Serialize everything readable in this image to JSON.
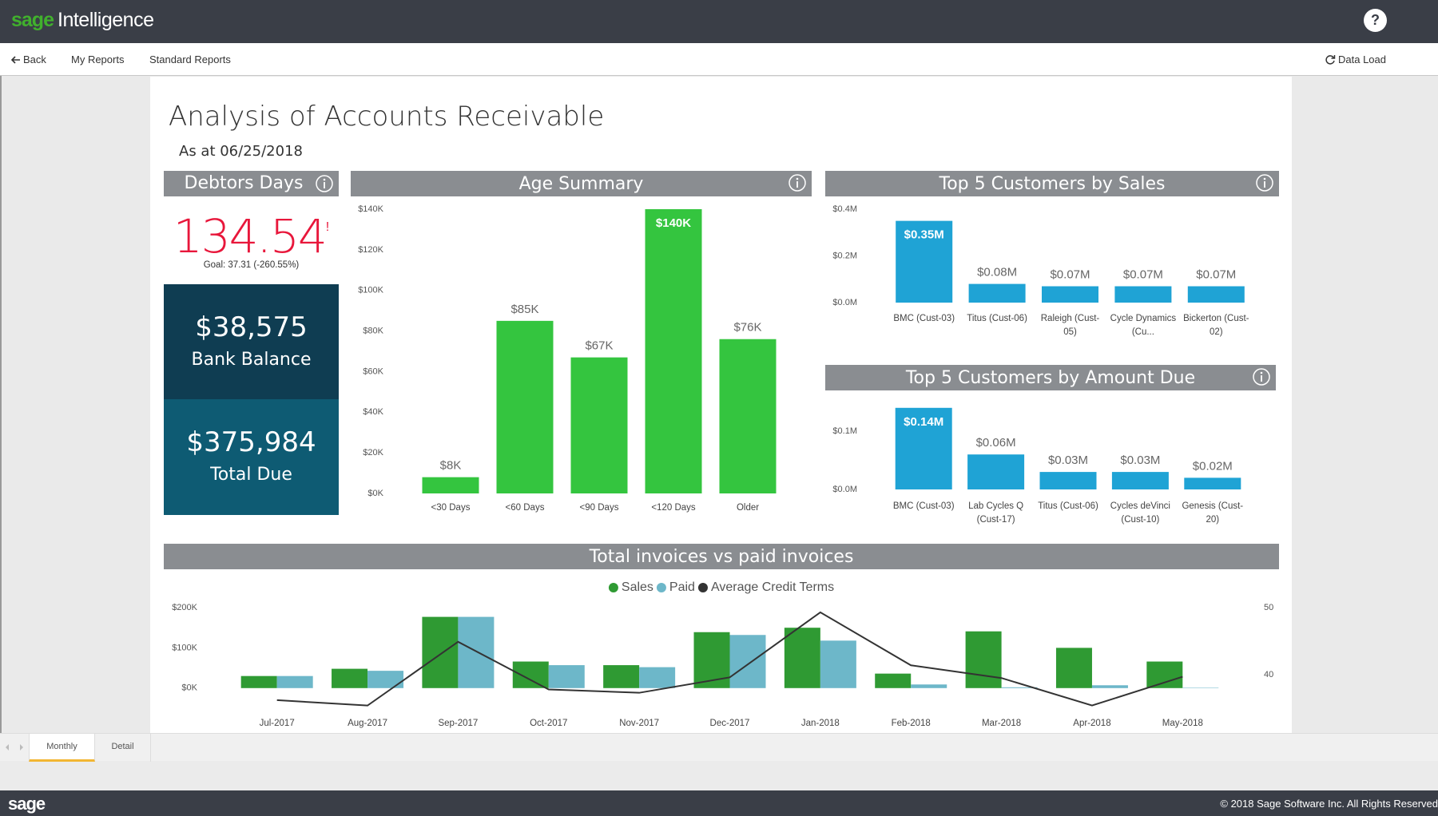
{
  "header": {
    "brand": "sage",
    "product": "Intelligence",
    "help": "?"
  },
  "nav": {
    "back": "Back",
    "my_reports": "My Reports",
    "standard_reports": "Standard Reports",
    "data_load": "Data Load"
  },
  "report": {
    "title": "Analysis of Accounts Receivable",
    "subtitle": "As at 06/25/2018",
    "debtors_days": {
      "title": "Debtors Days",
      "value": "134.54",
      "flag": "!",
      "goal": "Goal: 37.31 (-260.55%)"
    },
    "bank_balance": {
      "value": "$38,575",
      "label": "Bank Balance"
    },
    "total_due": {
      "value": "$375,984",
      "label": "Total Due"
    }
  },
  "chart_data": [
    {
      "type": "bar",
      "title": "Age Summary",
      "categories": [
        "<30 Days",
        "<60 Days",
        "<90 Days",
        "<120 Days",
        "Older"
      ],
      "values": [
        8000,
        85000,
        67000,
        140000,
        76000
      ],
      "value_labels": [
        "$8K",
        "$85K",
        "$67K",
        "$140K",
        "$76K"
      ],
      "color": "#34c53f",
      "ylim": [
        0,
        140000
      ],
      "yticks": [
        {
          "value": 0,
          "label": "$0K"
        },
        {
          "value": 20000,
          "label": "$20K"
        },
        {
          "value": 40000,
          "label": "$40K"
        },
        {
          "value": 60000,
          "label": "$60K"
        },
        {
          "value": 80000,
          "label": "$80K"
        },
        {
          "value": 100000,
          "label": "$100K"
        },
        {
          "value": 120000,
          "label": "$120K"
        },
        {
          "value": 140000,
          "label": "$140K"
        }
      ],
      "grid": false
    },
    {
      "type": "bar",
      "title": "Top 5 Customers by Sales",
      "categories": [
        "BMC (Cust-03)",
        "Titus (Cust-06)",
        "Raleigh (Cust-05)",
        "Cycle Dynamics (Cu...",
        "Bickerton (Cust-02)"
      ],
      "values": [
        0.35,
        0.08,
        0.07,
        0.07,
        0.07
      ],
      "value_labels": [
        "$0.35M",
        "$0.08M",
        "$0.07M",
        "$0.07M",
        "$0.07M"
      ],
      "color": "#1fa3d5",
      "ylim": [
        0,
        0.4
      ],
      "yticks": [
        {
          "value": 0,
          "label": "$0.0M"
        },
        {
          "value": 0.2,
          "label": "$0.2M"
        },
        {
          "value": 0.4,
          "label": "$0.4M"
        }
      ],
      "grid": false
    },
    {
      "type": "bar",
      "title": "Top 5 Customers by Amount Due",
      "categories": [
        "BMC (Cust-03)",
        "Lab Cycles Q (Cust-17)",
        "Titus (Cust-06)",
        "Cycles deVinci (Cust-10)",
        "Genesis (Cust-20)"
      ],
      "values": [
        0.14,
        0.06,
        0.03,
        0.03,
        0.02
      ],
      "value_labels": [
        "$0.14M",
        "$0.06M",
        "$0.03M",
        "$0.03M",
        "$0.02M"
      ],
      "color": "#1fa3d5",
      "ylim": [
        0,
        0.15
      ],
      "yticks": [
        {
          "value": 0,
          "label": "$0.0M"
        },
        {
          "value": 0.1,
          "label": "$0.1M"
        }
      ],
      "grid": false
    },
    {
      "type": "combo",
      "title": "Total invoices vs paid invoices",
      "categories": [
        "Jul-2017",
        "Aug-2017",
        "Sep-2017",
        "Oct-2017",
        "Nov-2017",
        "Dec-2017",
        "Jan-2018",
        "Feb-2018",
        "Mar-2018",
        "Apr-2018",
        "May-2018"
      ],
      "series": [
        {
          "name": "Sales",
          "type": "bar",
          "color": "#2f9a33",
          "values": [
            30000,
            48000,
            177000,
            66000,
            57000,
            139000,
            150000,
            36000,
            141000,
            100000,
            66000
          ]
        },
        {
          "name": "Paid",
          "type": "bar",
          "color": "#6db7c9",
          "values": [
            30000,
            43000,
            177000,
            57000,
            52000,
            132000,
            118000,
            9000,
            2000,
            7000,
            1000
          ]
        },
        {
          "name": "Average Credit Terms",
          "type": "line",
          "axis": "y2",
          "color": "#333333",
          "values": [
            36.2,
            35.4,
            44.9,
            37.8,
            37.3,
            39.6,
            49.3,
            41.4,
            39.5,
            35.4,
            39.7
          ]
        }
      ],
      "ylim": [
        -50000,
        200000
      ],
      "yticks": [
        {
          "value": 0,
          "label": "$0K"
        },
        {
          "value": 100000,
          "label": "$100K"
        },
        {
          "value": 200000,
          "label": "$200K"
        }
      ],
      "y2lim": [
        35,
        50
      ],
      "y2ticks": [
        40,
        50
      ],
      "legend": "top",
      "grid": false
    }
  ],
  "tabs": [
    "Monthly",
    "Detail"
  ],
  "footer": {
    "brand": "sage",
    "copyright": "© 2018 Sage Software Inc. All Rights Reserved"
  }
}
